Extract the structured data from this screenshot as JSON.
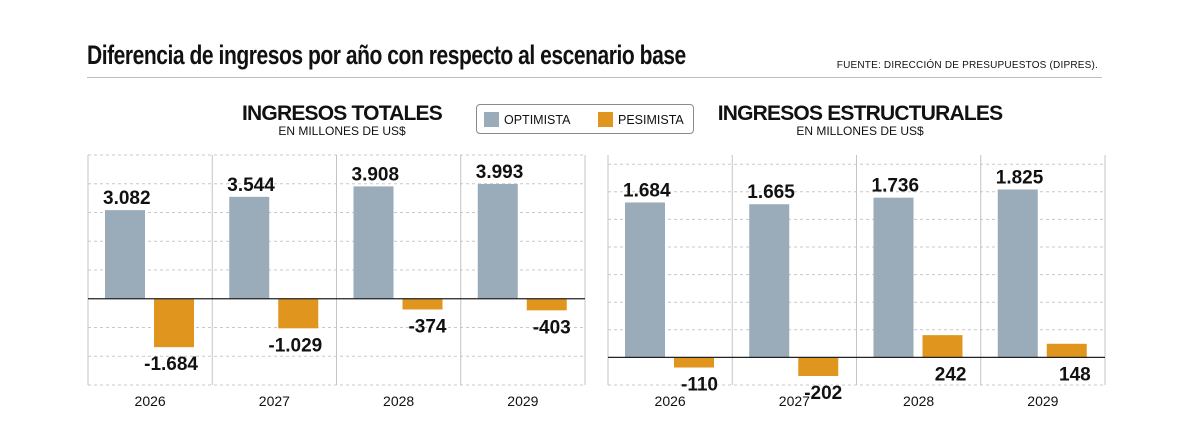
{
  "header": {
    "title": "Diferencia de ingresos por año con respecto al escenario base",
    "source": "FUENTE: DIRECCIÓN DE PRESUPUESTOS (DIPRES)."
  },
  "legend": {
    "optimista": "OPTIMISTA",
    "pesimista": "PESIMISTA"
  },
  "colors": {
    "optimista": "#9aabb9",
    "pesimista": "#e0951f",
    "grid": "#c8c8c8",
    "axis": "#222222"
  },
  "chart_data": [
    {
      "type": "bar",
      "title": "INGRESOS TOTALES",
      "subtitle": "EN MILLONES DE US$",
      "categories": [
        "2026",
        "2027",
        "2028",
        "2029"
      ],
      "series": [
        {
          "name": "OPTIMISTA",
          "values": [
            3082,
            3544,
            3908,
            3993
          ],
          "labels": [
            "3.082",
            "3.544",
            "3.908",
            "3.993"
          ]
        },
        {
          "name": "PESIMISTA",
          "values": [
            -1684,
            -1029,
            -374,
            -403
          ],
          "labels": [
            "-1.684",
            "-1.029",
            "-374",
            "-403"
          ]
        }
      ],
      "ylim": [
        -3000,
        5000
      ],
      "grid": true
    },
    {
      "type": "bar",
      "title": "INGRESOS ESTRUCTURALES",
      "subtitle": "EN MILLONES DE US$",
      "categories": [
        "2026",
        "2027",
        "2028",
        "2029"
      ],
      "series": [
        {
          "name": "OPTIMISTA",
          "values": [
            1684,
            1665,
            1736,
            1825
          ],
          "labels": [
            "1.684",
            "1.665",
            "1.736",
            "1.825"
          ]
        },
        {
          "name": "PESIMISTA",
          "values": [
            -110,
            -202,
            242,
            148
          ],
          "labels": [
            "-110",
            "-202",
            "242",
            "148"
          ]
        }
      ],
      "ylim": [
        -300,
        2200
      ],
      "grid": true
    }
  ]
}
